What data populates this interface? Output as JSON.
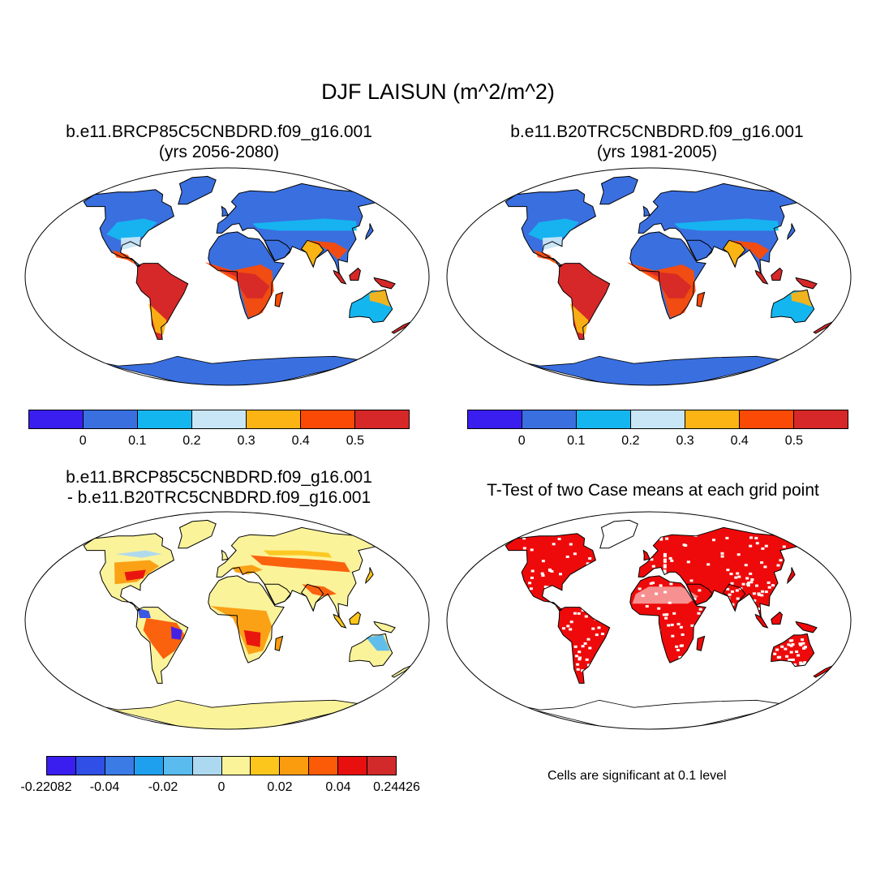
{
  "title": "DJF LAISUN (m^2/m^2)",
  "panels": [
    {
      "id": "future",
      "title_line1": "b.e11.BRCP85C5CNBDRD.f09_g16.001",
      "title_line2": "(yrs 2056-2080)"
    },
    {
      "id": "historical",
      "title_line1": "b.e11.B20TRC5CNBDRD.f09_g16.001",
      "title_line2": "(yrs 1981-2005)"
    },
    {
      "id": "difference",
      "title_line1": "b.e11.BRCP85C5CNBDRD.f09_g16.001",
      "title_line2": "- b.e11.B20TRC5CNBDRD.f09_g16.001"
    },
    {
      "id": "ttest",
      "title_line1": "T-Test of two Case means at each grid point",
      "note": "Cells are significant at 0.1 level"
    }
  ],
  "colorbar_main": {
    "colors": [
      "#3a1ef0",
      "#3a6fe0",
      "#14b6f0",
      "#c8e6f6",
      "#fbb414",
      "#fb4a06",
      "#d62828"
    ],
    "labels": [
      "0",
      "0.1",
      "0.2",
      "0.3",
      "0.4",
      "0.5"
    ]
  },
  "colorbar_diff": {
    "colors": [
      "#3a1ef0",
      "#2f4fe6",
      "#3a7be6",
      "#1fa0ee",
      "#59bbee",
      "#acd8f0",
      "#fbf39a",
      "#fcc61c",
      "#fb9c0e",
      "#fb5a06",
      "#e80f0f",
      "#d22a2a"
    ],
    "labels": [
      "-0.22082",
      "-0.04",
      "-0.02",
      "0",
      "0.02",
      "0.04",
      "0.24426"
    ]
  },
  "fills": {
    "ocean": "#ffffff",
    "ttest_land": "#ee0a0a"
  }
}
